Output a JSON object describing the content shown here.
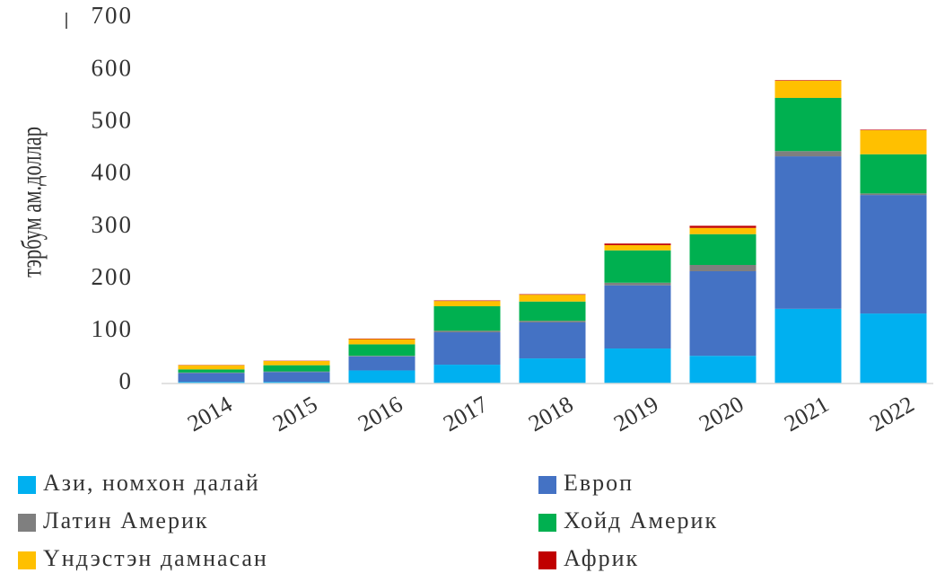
{
  "chart_data": {
    "type": "stacked_bar",
    "ylabel": "тэрбум ам.доллар",
    "categories": [
      "2014",
      "2015",
      "2016",
      "2017",
      "2018",
      "2019",
      "2020",
      "2021",
      "2022"
    ],
    "series": [
      {
        "name": "Ази, номхон далай",
        "color": "#00b0f0",
        "values": [
          3,
          3,
          25,
          36,
          48,
          67,
          53,
          143,
          134
        ]
      },
      {
        "name": "Европ",
        "color": "#4472c4",
        "values": [
          17,
          19,
          27,
          62,
          69,
          121,
          162,
          292,
          227
        ]
      },
      {
        "name": "Латин Америк",
        "color": "#7f7f7f",
        "values": [
          1,
          1,
          1,
          3,
          3,
          5,
          12,
          10,
          3
        ]
      },
      {
        "name": "Хойд Америк",
        "color": "#00b050",
        "values": [
          6,
          12,
          22,
          47,
          37,
          62,
          59,
          102,
          75
        ]
      },
      {
        "name": "Үндэстэн дамнасан",
        "color": "#ffc000",
        "values": [
          8,
          8,
          10,
          10,
          13,
          10,
          12,
          33,
          46
        ]
      },
      {
        "name": "Африк",
        "color": "#c00000",
        "values": [
          0.5,
          0.5,
          1,
          1,
          1,
          3,
          4,
          1,
          1
        ]
      }
    ],
    "ylim": [
      0,
      700
    ],
    "yticks": [
      0,
      100,
      200,
      300,
      400,
      500,
      600,
      700
    ]
  }
}
